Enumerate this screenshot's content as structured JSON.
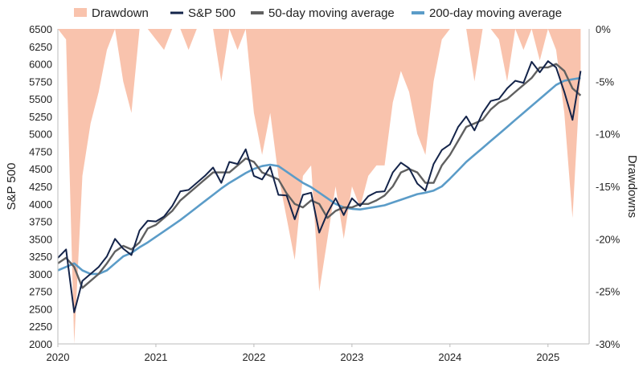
{
  "chart_data": {
    "type": "line",
    "title": "",
    "xlabel": "",
    "ylabel": "S&P 500",
    "y2label": "Drawdowns",
    "ylim": [
      2000,
      6500
    ],
    "y2lim": [
      -30,
      0
    ],
    "x_ticks": [
      "2020",
      "2021",
      "2022",
      "2023",
      "2024",
      "2025"
    ],
    "y_ticks": [
      "6500",
      "6250",
      "6000",
      "5750",
      "5500",
      "5250",
      "5000",
      "4750",
      "4500",
      "4250",
      "4000",
      "3750",
      "3500",
      "3250",
      "3000",
      "2750",
      "2500",
      "2250",
      "2000"
    ],
    "y2_ticks": [
      "0%",
      "-5%",
      "-10%",
      "-15%",
      "-20%",
      "-25%",
      "-30%"
    ],
    "legend": [
      "Drawdown",
      "S&P 500",
      "50-day moving average",
      "200-day moving average"
    ],
    "legend_position": "top",
    "colors": {
      "drawdown": "#f9c3ad",
      "sp500": "#14244a",
      "ma50": "#606060",
      "ma200": "#5b9cc8"
    },
    "x": [
      "2020-01",
      "2020-02",
      "2020-03",
      "2020-04",
      "2020-05",
      "2020-06",
      "2020-07",
      "2020-08",
      "2020-09",
      "2020-10",
      "2020-11",
      "2020-12",
      "2021-01",
      "2021-02",
      "2021-03",
      "2021-04",
      "2021-05",
      "2021-06",
      "2021-07",
      "2021-08",
      "2021-09",
      "2021-10",
      "2021-11",
      "2021-12",
      "2022-01",
      "2022-02",
      "2022-03",
      "2022-04",
      "2022-05",
      "2022-06",
      "2022-07",
      "2022-08",
      "2022-09",
      "2022-10",
      "2022-11",
      "2022-12",
      "2023-01",
      "2023-02",
      "2023-03",
      "2023-04",
      "2023-05",
      "2023-06",
      "2023-07",
      "2023-08",
      "2023-09",
      "2023-10",
      "2023-11",
      "2023-12",
      "2024-01",
      "2024-02",
      "2024-03",
      "2024-04",
      "2024-05",
      "2024-06",
      "2024-07",
      "2024-08",
      "2024-09",
      "2024-10",
      "2024-11",
      "2024-12",
      "2025-01",
      "2025-02",
      "2025-03",
      "2025-04",
      "2025-05"
    ],
    "series": [
      {
        "name": "S&P 500",
        "axis": "left",
        "values": [
          3230,
          3350,
          2450,
          2900,
          3000,
          3100,
          3250,
          3500,
          3360,
          3270,
          3620,
          3760,
          3750,
          3820,
          3970,
          4180,
          4200,
          4300,
          4400,
          4520,
          4300,
          4600,
          4570,
          4780,
          4400,
          4350,
          4530,
          4130,
          4120,
          3780,
          4130,
          4160,
          3590,
          3870,
          4080,
          3840,
          4080,
          3970,
          4110,
          4170,
          4180,
          4450,
          4590,
          4510,
          4290,
          4190,
          4570,
          4770,
          4850,
          5100,
          5250,
          5050,
          5300,
          5470,
          5500,
          5650,
          5760,
          5730,
          6030,
          5880,
          6040,
          5950,
          5600,
          5200,
          5900
        ]
      },
      {
        "name": "50-day moving average",
        "axis": "left",
        "values": [
          3150,
          3230,
          3100,
          2800,
          2900,
          3000,
          3150,
          3320,
          3400,
          3350,
          3450,
          3650,
          3700,
          3800,
          3900,
          4050,
          4150,
          4250,
          4350,
          4450,
          4450,
          4450,
          4550,
          4650,
          4600,
          4450,
          4400,
          4350,
          4150,
          4000,
          3950,
          4050,
          4000,
          3800,
          3900,
          3950,
          3950,
          4000,
          4000,
          4050,
          4120,
          4250,
          4450,
          4500,
          4450,
          4300,
          4300,
          4550,
          4700,
          4900,
          5100,
          5150,
          5200,
          5350,
          5450,
          5500,
          5600,
          5700,
          5800,
          5950,
          5950,
          6000,
          5900,
          5650,
          5550
        ]
      },
      {
        "name": "200-day moving average",
        "axis": "left",
        "values": [
          3050,
          3100,
          3150,
          3050,
          3000,
          3000,
          3050,
          3150,
          3250,
          3300,
          3380,
          3450,
          3530,
          3610,
          3690,
          3770,
          3860,
          3950,
          4040,
          4130,
          4220,
          4300,
          4370,
          4440,
          4500,
          4540,
          4560,
          4540,
          4460,
          4380,
          4300,
          4240,
          4160,
          4080,
          4000,
          3950,
          3930,
          3920,
          3940,
          3960,
          3980,
          4020,
          4060,
          4100,
          4140,
          4160,
          4190,
          4250,
          4360,
          4480,
          4600,
          4700,
          4800,
          4900,
          5000,
          5100,
          5200,
          5300,
          5400,
          5500,
          5600,
          5700,
          5760,
          5780,
          5800
        ]
      },
      {
        "name": "Drawdown",
        "axis": "right",
        "unit": "%",
        "values": [
          0,
          -1,
          -30,
          -14,
          -9,
          -6,
          -2,
          0,
          -5,
          -8,
          0,
          0,
          -1,
          -2,
          0,
          0,
          -2,
          0,
          0,
          0,
          -5,
          0,
          -2,
          0,
          -8,
          -12,
          -8,
          -14,
          -18,
          -22,
          -14,
          -13,
          -25,
          -20,
          -15,
          -20,
          -15,
          -17,
          -14,
          -13,
          -13,
          -7,
          -4,
          -6,
          -10,
          -12,
          -5,
          -1,
          0,
          0,
          0,
          -5,
          0,
          0,
          -1,
          -5,
          0,
          -2,
          0,
          -3,
          0,
          -2,
          -8,
          -18,
          -4
        ]
      }
    ]
  }
}
